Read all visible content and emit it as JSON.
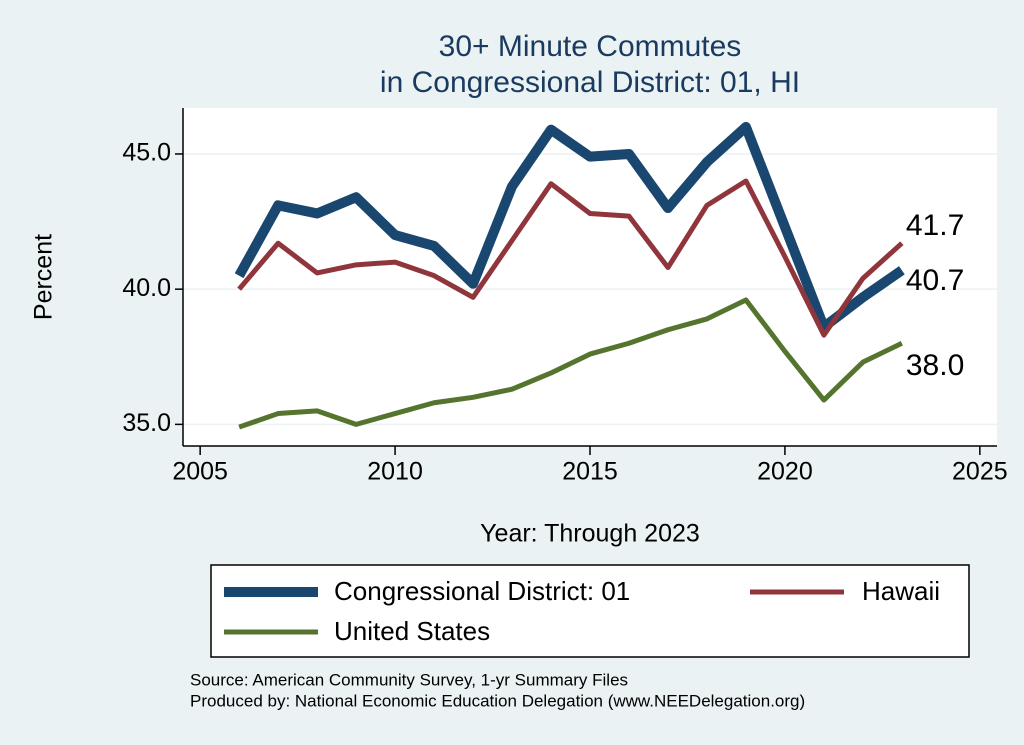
{
  "chart_data": {
    "type": "line",
    "title": [
      "30+ Minute Commutes",
      "in Congressional District:  01, HI"
    ],
    "x_label": "Year: Through 2023",
    "y_label": "Percent",
    "x": [
      2006,
      2007,
      2008,
      2009,
      2010,
      2011,
      2012,
      2013,
      2014,
      2015,
      2016,
      2017,
      2018,
      2019,
      2020,
      2021,
      2022,
      2023
    ],
    "series": [
      {
        "name": "Congressional District:  01",
        "color": "#1a476f",
        "width": 10,
        "values": [
          40.5,
          43.1,
          42.8,
          43.4,
          42.0,
          41.6,
          40.2,
          43.8,
          45.9,
          44.9,
          45.0,
          43.0,
          44.7,
          46.0,
          42.3,
          38.6,
          39.7,
          40.7
        ],
        "value_labels": [
          null,
          null,
          null,
          null,
          null,
          null,
          null,
          null,
          null,
          null,
          null,
          null,
          null,
          null,
          null,
          null,
          null,
          "40.7"
        ]
      },
      {
        "name": "Hawaii",
        "color": "#90353b",
        "width": 5,
        "values": [
          40.0,
          41.7,
          40.6,
          40.9,
          41.0,
          40.5,
          39.7,
          41.8,
          43.9,
          42.8,
          42.7,
          40.8,
          43.1,
          44.0,
          41.2,
          38.3,
          40.4,
          41.7
        ],
        "value_labels": [
          null,
          null,
          null,
          null,
          null,
          null,
          null,
          null,
          null,
          null,
          null,
          null,
          null,
          null,
          null,
          null,
          null,
          "41.7"
        ]
      },
      {
        "name": "United States",
        "color": "#55752f",
        "width": 5,
        "values": [
          34.9,
          35.4,
          35.5,
          35.0,
          35.4,
          35.8,
          36.0,
          36.3,
          36.9,
          37.6,
          38.0,
          38.5,
          38.9,
          39.6,
          37.7,
          35.9,
          37.3,
          38.0
        ],
        "value_labels": [
          null,
          null,
          null,
          null,
          null,
          null,
          null,
          null,
          null,
          null,
          null,
          null,
          null,
          null,
          null,
          null,
          null,
          "38.0"
        ]
      }
    ],
    "xlim": [
      2004.56,
      2025.44
    ],
    "ylim": [
      34.2,
      46.7
    ],
    "xticks": [
      2005,
      2010,
      2015,
      2020,
      2025
    ],
    "yticks": [
      {
        "value": 35,
        "label": "35.0"
      },
      {
        "value": 40,
        "label": "40.0"
      },
      {
        "value": 45,
        "label": "45.0"
      }
    ],
    "grid": true,
    "notes": [
      "Source: American Community Survey, 1-yr Summary Files",
      "Produced by: National Economic Education Delegation (www.NEEDelegation.org)"
    ]
  }
}
